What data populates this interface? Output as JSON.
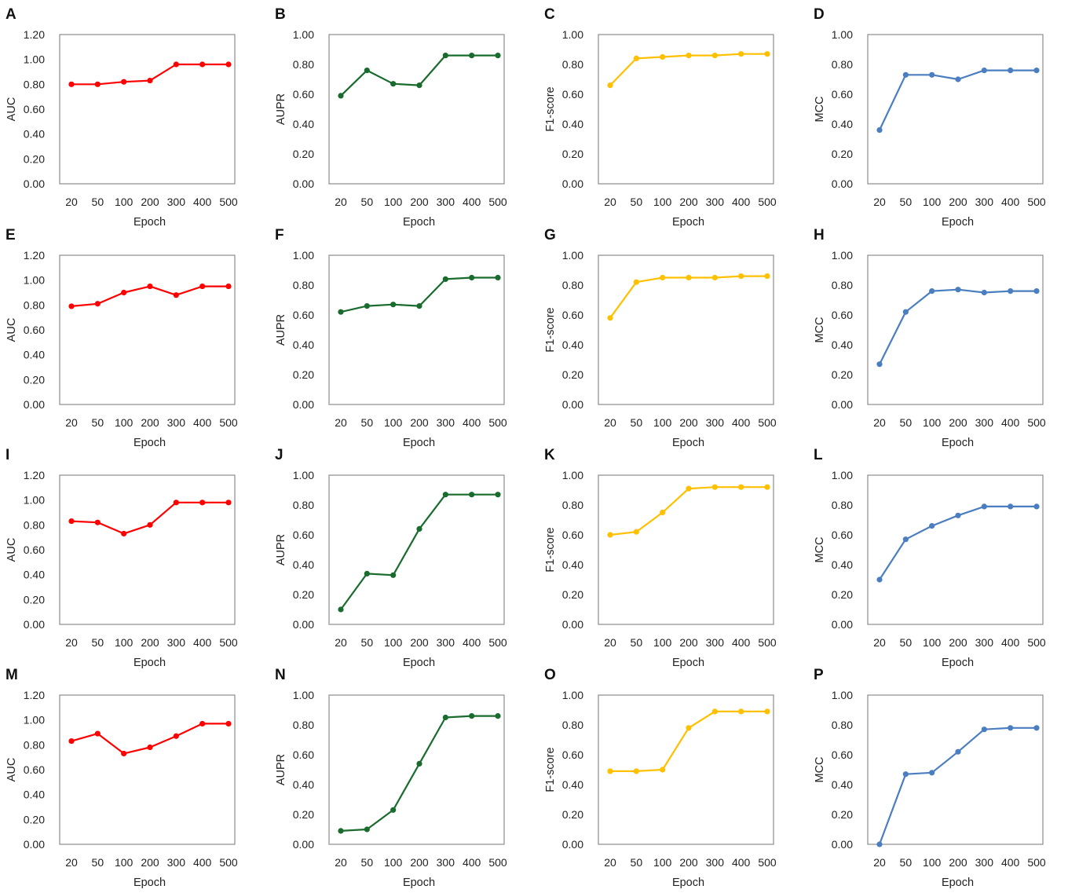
{
  "figure": {
    "x_tick_labels": [
      "20",
      "50",
      "100",
      "200",
      "300",
      "400",
      "500"
    ],
    "xlabel": "Epoch"
  },
  "chart_data": [
    {
      "type": "line",
      "panel": "A",
      "ylabel": "AUC",
      "ylim": [
        0,
        1.2
      ],
      "yticks": [
        "0.00",
        "0.20",
        "0.40",
        "0.60",
        "0.80",
        "1.00",
        "1.20"
      ],
      "color": "#ff0000",
      "categories": [
        "20",
        "50",
        "100",
        "200",
        "300",
        "400",
        "500"
      ],
      "values": [
        0.8,
        0.8,
        0.82,
        0.83,
        0.96,
        0.96,
        0.96
      ]
    },
    {
      "type": "line",
      "panel": "B",
      "ylabel": "AUPR",
      "ylim": [
        0,
        1.0
      ],
      "yticks": [
        "0.00",
        "0.20",
        "0.40",
        "0.60",
        "0.80",
        "1.00"
      ],
      "color": "#1a6b2e",
      "categories": [
        "20",
        "50",
        "100",
        "200",
        "300",
        "400",
        "500"
      ],
      "values": [
        0.59,
        0.76,
        0.67,
        0.66,
        0.86,
        0.86,
        0.86
      ]
    },
    {
      "type": "line",
      "panel": "C",
      "ylabel": "F1-score",
      "ylim": [
        0,
        1.0
      ],
      "yticks": [
        "0.00",
        "0.20",
        "0.40",
        "0.60",
        "0.80",
        "1.00"
      ],
      "color": "#ffc000",
      "categories": [
        "20",
        "50",
        "100",
        "200",
        "300",
        "400",
        "500"
      ],
      "values": [
        0.66,
        0.84,
        0.85,
        0.86,
        0.86,
        0.87,
        0.87
      ]
    },
    {
      "type": "line",
      "panel": "D",
      "ylabel": "MCC",
      "ylim": [
        0,
        1.0
      ],
      "yticks": [
        "0.00",
        "0.20",
        "0.40",
        "0.60",
        "0.80",
        "1.00"
      ],
      "color": "#4a7ec0",
      "categories": [
        "20",
        "50",
        "100",
        "200",
        "300",
        "400",
        "500"
      ],
      "values": [
        0.36,
        0.73,
        0.73,
        0.7,
        0.76,
        0.76,
        0.76
      ]
    },
    {
      "type": "line",
      "panel": "E",
      "ylabel": "AUC",
      "ylim": [
        0,
        1.2
      ],
      "yticks": [
        "0.00",
        "0.20",
        "0.40",
        "0.60",
        "0.80",
        "1.00",
        "1.20"
      ],
      "color": "#ff0000",
      "categories": [
        "20",
        "50",
        "100",
        "200",
        "300",
        "400",
        "500"
      ],
      "values": [
        0.79,
        0.81,
        0.9,
        0.95,
        0.88,
        0.95,
        0.95
      ]
    },
    {
      "type": "line",
      "panel": "F",
      "ylabel": "AUPR",
      "ylim": [
        0,
        1.0
      ],
      "yticks": [
        "0.00",
        "0.20",
        "0.40",
        "0.60",
        "0.80",
        "1.00"
      ],
      "color": "#1a6b2e",
      "categories": [
        "20",
        "50",
        "100",
        "200",
        "300",
        "400",
        "500"
      ],
      "values": [
        0.62,
        0.66,
        0.67,
        0.66,
        0.84,
        0.85,
        0.85
      ]
    },
    {
      "type": "line",
      "panel": "G",
      "ylabel": "F1-score",
      "ylim": [
        0,
        1.0
      ],
      "yticks": [
        "0.00",
        "0.20",
        "0.40",
        "0.60",
        "0.80",
        "1.00"
      ],
      "color": "#ffc000",
      "categories": [
        "20",
        "50",
        "100",
        "200",
        "300",
        "400",
        "500"
      ],
      "values": [
        0.58,
        0.82,
        0.85,
        0.85,
        0.85,
        0.86,
        0.86
      ]
    },
    {
      "type": "line",
      "panel": "H",
      "ylabel": "MCC",
      "ylim": [
        0,
        1.0
      ],
      "yticks": [
        "0.00",
        "0.20",
        "0.40",
        "0.60",
        "0.80",
        "1.00"
      ],
      "color": "#4a7ec0",
      "categories": [
        "20",
        "50",
        "100",
        "200",
        "300",
        "400",
        "500"
      ],
      "values": [
        0.27,
        0.62,
        0.76,
        0.77,
        0.75,
        0.76,
        0.76
      ]
    },
    {
      "type": "line",
      "panel": "I",
      "ylabel": "AUC",
      "ylim": [
        0,
        1.2
      ],
      "yticks": [
        "0.00",
        "0.20",
        "0.40",
        "0.60",
        "0.80",
        "1.00",
        "1.20"
      ],
      "color": "#ff0000",
      "categories": [
        "20",
        "50",
        "100",
        "200",
        "300",
        "400",
        "500"
      ],
      "values": [
        0.83,
        0.82,
        0.73,
        0.8,
        0.98,
        0.98,
        0.98
      ]
    },
    {
      "type": "line",
      "panel": "J",
      "ylabel": "AUPR",
      "ylim": [
        0,
        1.0
      ],
      "yticks": [
        "0.00",
        "0.20",
        "0.40",
        "0.60",
        "0.80",
        "1.00"
      ],
      "color": "#1a6b2e",
      "categories": [
        "20",
        "50",
        "100",
        "200",
        "300",
        "400",
        "500"
      ],
      "values": [
        0.1,
        0.34,
        0.33,
        0.64,
        0.87,
        0.87,
        0.87
      ]
    },
    {
      "type": "line",
      "panel": "K",
      "ylabel": "F1-score",
      "ylim": [
        0,
        1.0
      ],
      "yticks": [
        "0.00",
        "0.20",
        "0.40",
        "0.60",
        "0.80",
        "1.00"
      ],
      "color": "#ffc000",
      "categories": [
        "20",
        "50",
        "100",
        "200",
        "300",
        "400",
        "500"
      ],
      "values": [
        0.6,
        0.62,
        0.75,
        0.91,
        0.92,
        0.92,
        0.92
      ]
    },
    {
      "type": "line",
      "panel": "L",
      "ylabel": "MCC",
      "ylim": [
        0,
        1.0
      ],
      "yticks": [
        "0.00",
        "0.20",
        "0.40",
        "0.60",
        "0.80",
        "1.00"
      ],
      "color": "#4a7ec0",
      "categories": [
        "20",
        "50",
        "100",
        "200",
        "300",
        "400",
        "500"
      ],
      "values": [
        0.3,
        0.57,
        0.66,
        0.73,
        0.79,
        0.79,
        0.79
      ]
    },
    {
      "type": "line",
      "panel": "M",
      "ylabel": "AUC",
      "ylim": [
        0,
        1.2
      ],
      "yticks": [
        "0.00",
        "0.20",
        "0.40",
        "0.60",
        "0.80",
        "1.00",
        "1.20"
      ],
      "color": "#ff0000",
      "categories": [
        "20",
        "50",
        "100",
        "200",
        "300",
        "400",
        "500"
      ],
      "values": [
        0.83,
        0.89,
        0.73,
        0.78,
        0.87,
        0.97,
        0.97
      ]
    },
    {
      "type": "line",
      "panel": "N",
      "ylabel": "AUPR",
      "ylim": [
        0,
        1.0
      ],
      "yticks": [
        "0.00",
        "0.20",
        "0.40",
        "0.60",
        "0.80",
        "1.00"
      ],
      "color": "#1a6b2e",
      "categories": [
        "20",
        "50",
        "100",
        "200",
        "300",
        "400",
        "500"
      ],
      "values": [
        0.09,
        0.1,
        0.23,
        0.54,
        0.85,
        0.86,
        0.86
      ]
    },
    {
      "type": "line",
      "panel": "O",
      "ylabel": "F1-score",
      "ylim": [
        0,
        1.0
      ],
      "yticks": [
        "0.00",
        "0.20",
        "0.40",
        "0.60",
        "0.80",
        "1.00"
      ],
      "color": "#ffc000",
      "categories": [
        "20",
        "50",
        "100",
        "200",
        "300",
        "400",
        "500"
      ],
      "values": [
        0.49,
        0.49,
        0.5,
        0.78,
        0.89,
        0.89,
        0.89
      ]
    },
    {
      "type": "line",
      "panel": "P",
      "ylabel": "MCC",
      "ylim": [
        0,
        1.0
      ],
      "yticks": [
        "0.00",
        "0.20",
        "0.40",
        "0.60",
        "0.80",
        "1.00"
      ],
      "color": "#4a7ec0",
      "categories": [
        "20",
        "50",
        "100",
        "200",
        "300",
        "400",
        "500"
      ],
      "values": [
        0.0,
        0.47,
        0.48,
        0.62,
        0.77,
        0.78,
        0.78
      ]
    }
  ]
}
